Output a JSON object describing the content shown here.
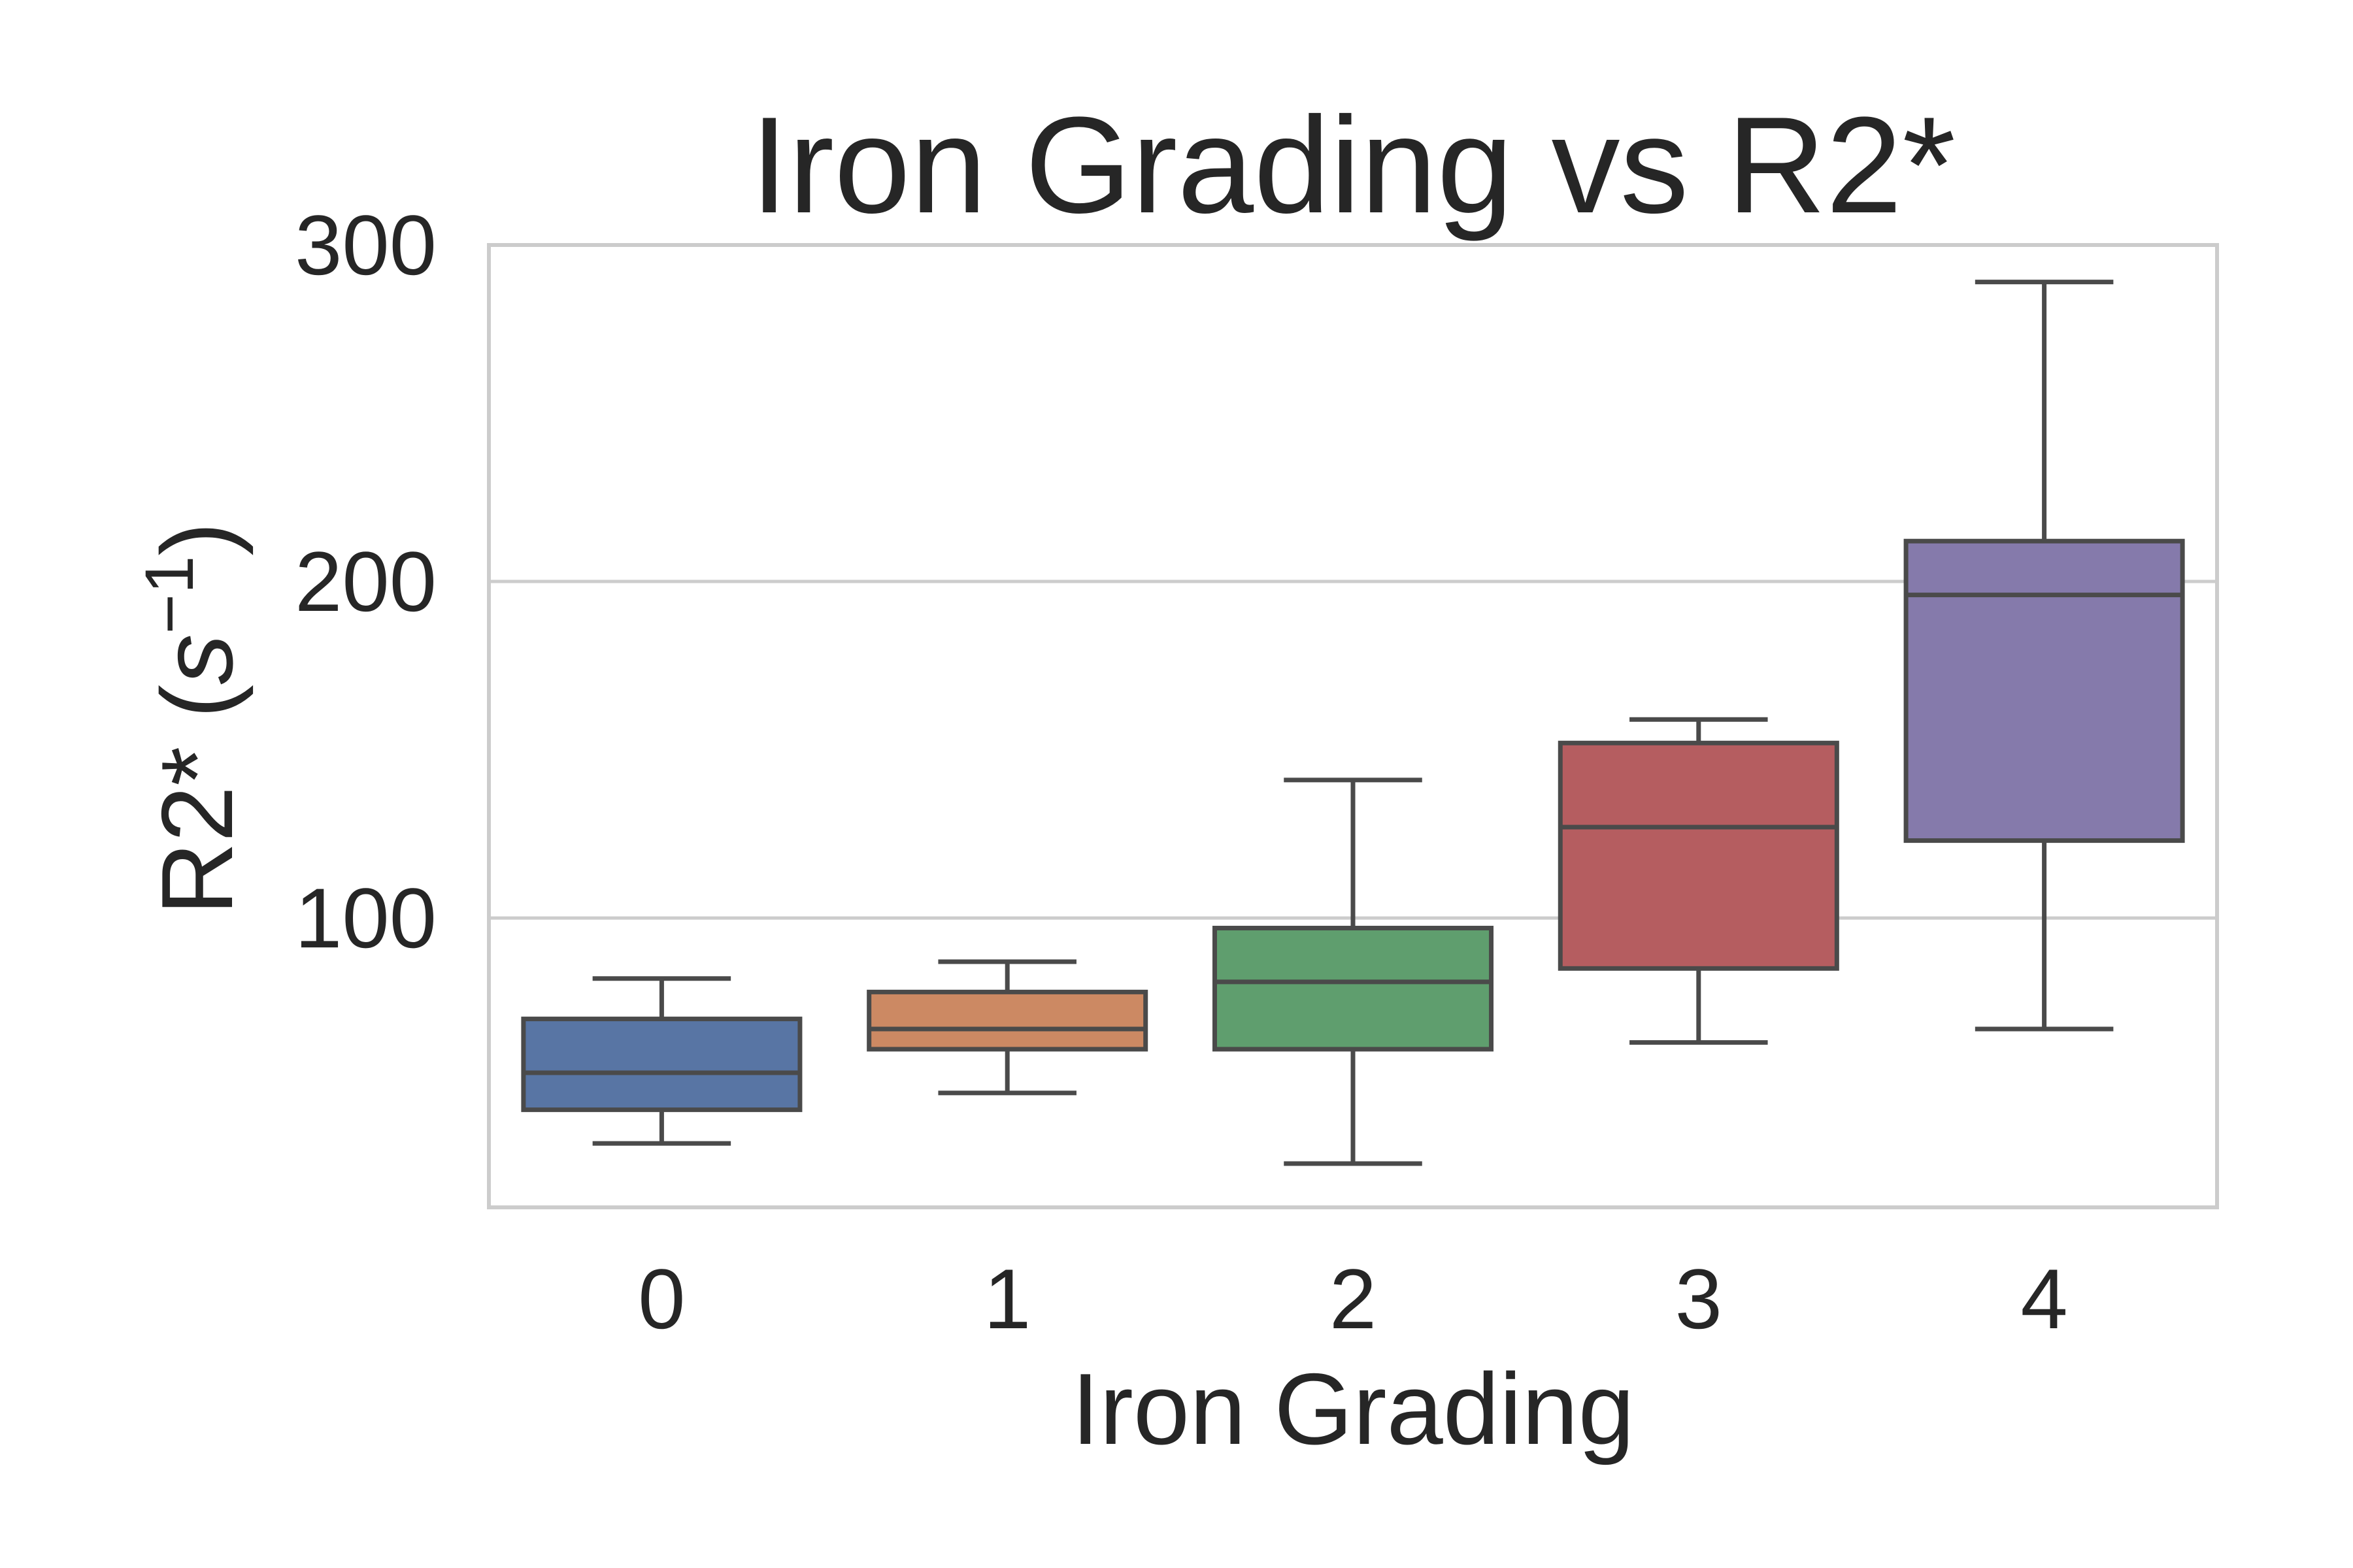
{
  "chart_data": {
    "type": "box",
    "title": "Iron Grading vs R2*",
    "xlabel": "Iron Grading",
    "ylabel_main": "R2* (",
    "ylabel_unit_base": "s",
    "ylabel_unit_exp": "−1",
    "ylabel_close": ")",
    "ylim": [
      14,
      300
    ],
    "yticks": [
      100,
      200,
      300
    ],
    "ytick_labels": [
      "100",
      "200",
      "300"
    ],
    "grid": true,
    "categories": [
      "0",
      "1",
      "2",
      "3",
      "4"
    ],
    "boxes": [
      {
        "category": "0",
        "whisker_low": 33,
        "q1": 43,
        "median": 54,
        "q3": 70,
        "whisker_high": 82,
        "color": "#5875a4"
      },
      {
        "category": "1",
        "whisker_low": 48,
        "q1": 61,
        "median": 67,
        "q3": 78,
        "whisker_high": 87,
        "color": "#cc8963"
      },
      {
        "category": "2",
        "whisker_low": 27,
        "q1": 61,
        "median": 81,
        "q3": 97,
        "whisker_high": 141,
        "color": "#5f9e6e"
      },
      {
        "category": "3",
        "whisker_low": 63,
        "q1": 85,
        "median": 127,
        "q3": 152,
        "whisker_high": 159,
        "color": "#b55d60"
      },
      {
        "category": "4",
        "whisker_low": 67,
        "q1": 123,
        "median": 196,
        "q3": 212,
        "whisker_high": 289,
        "color": "#857aab"
      }
    ],
    "colors": {
      "line": "#4a4a4a",
      "grid": "#cccccc",
      "frame": "#cccccc",
      "text": "#262626"
    }
  }
}
